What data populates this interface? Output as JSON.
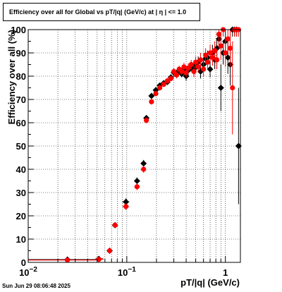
{
  "chart_data": {
    "type": "scatter",
    "title": "Efficiency over all for Global vs pT/|q| (GeV/c) at |  η  | <= 1.0",
    "xlabel": "pT/|q| (GeV/c)",
    "ylabel": "Efficiency over all (%)",
    "xscale": "log",
    "xlim": [
      0.01,
      1.42
    ],
    "ylim": [
      0,
      100
    ],
    "grid": true,
    "x_tick_labels": [
      {
        "value": 0.01,
        "base": "10",
        "exp": "−2"
      },
      {
        "value": 0.1,
        "base": "10",
        "exp": "−1"
      },
      {
        "value": 1,
        "base": "1",
        "exp": ""
      }
    ],
    "y_ticks": [
      0,
      10,
      20,
      30,
      40,
      50,
      60,
      70,
      80,
      90,
      100
    ],
    "series": [
      {
        "color": "#000000",
        "marker": "diamond",
        "points": [
          {
            "x": 0.025,
            "y": 1.2,
            "xerr": [
              0.015,
              0.025
            ]
          },
          {
            "x": 0.052,
            "y": 1.5,
            "xerr": [
              0.004,
              0.006
            ]
          },
          {
            "x": 0.067,
            "y": 5.0
          },
          {
            "x": 0.076,
            "y": 16.0
          },
          {
            "x": 0.098,
            "y": 26.0,
            "xerr": [
              0.008,
              0.008
            ],
            "yerr": 1.5
          },
          {
            "x": 0.127,
            "y": 35.0,
            "xerr": [
              0.008,
              0.009
            ],
            "yerr": 1.5
          },
          {
            "x": 0.148,
            "y": 42.5,
            "yerr": 1.5
          },
          {
            "x": 0.158,
            "y": 62.0,
            "yerr": 1.2
          },
          {
            "x": 0.178,
            "y": 71.5,
            "yerr": 1.2
          },
          {
            "x": 0.197,
            "y": 74.0,
            "yerr": 1.2
          },
          {
            "x": 0.216,
            "y": 76.0,
            "yerr": 1.2
          },
          {
            "x": 0.237,
            "y": 77.0,
            "yerr": 1.2
          },
          {
            "x": 0.258,
            "y": 77.5,
            "yerr": 1.2
          },
          {
            "x": 0.28,
            "y": 79.5,
            "yerr": 1.2
          },
          {
            "x": 0.3,
            "y": 81.5,
            "yerr": 1.5
          },
          {
            "x": 0.32,
            "y": 81.0,
            "yerr": 1.5
          },
          {
            "x": 0.34,
            "y": 82.5,
            "yerr": 1.5
          },
          {
            "x": 0.36,
            "y": 81.0,
            "yerr": 1.5
          },
          {
            "x": 0.38,
            "y": 83.0,
            "yerr": 1.8
          },
          {
            "x": 0.4,
            "y": 80.0,
            "yerr": 2
          },
          {
            "x": 0.42,
            "y": 82.5,
            "yerr": 2
          },
          {
            "x": 0.45,
            "y": 84.0,
            "yerr": 2
          },
          {
            "x": 0.48,
            "y": 83.0,
            "yerr": 2.5
          },
          {
            "x": 0.5,
            "y": 85.0,
            "yerr": 2.5
          },
          {
            "x": 0.53,
            "y": 86.0,
            "yerr": 2.5
          },
          {
            "x": 0.56,
            "y": 82.0,
            "yerr": 3
          },
          {
            "x": 0.6,
            "y": 85.0,
            "yerr": 3
          },
          {
            "x": 0.63,
            "y": 87.5,
            "yerr": 3
          },
          {
            "x": 0.66,
            "y": 88.0,
            "yerr": 3
          },
          {
            "x": 0.7,
            "y": 83.0,
            "yerr": 3.5
          },
          {
            "x": 0.74,
            "y": 90.0,
            "yerr": 3.5
          },
          {
            "x": 0.78,
            "y": 87.0,
            "yerr": 4
          },
          {
            "x": 0.82,
            "y": 92.0,
            "yerr": 4
          },
          {
            "x": 0.86,
            "y": 96.0,
            "yerr": 4
          },
          {
            "x": 0.9,
            "y": 75.0,
            "yerr": 10
          },
          {
            "x": 0.95,
            "y": 90.0,
            "yerr": 5
          },
          {
            "x": 1.0,
            "y": 95.0,
            "yerr": 5
          },
          {
            "x": 1.06,
            "y": 88.0,
            "yerr": 7
          },
          {
            "x": 1.12,
            "y": 85.0,
            "yerr": 9
          },
          {
            "x": 1.18,
            "y": 100.0,
            "yerr": 3
          },
          {
            "x": 1.24,
            "y": 100.0,
            "yerr": 3
          },
          {
            "x": 1.3,
            "y": 100.0,
            "yerr": 3
          },
          {
            "x": 1.36,
            "y": 50.0,
            "yerr": 25
          }
        ]
      },
      {
        "color": "#ff0000",
        "marker": "circle",
        "points": [
          {
            "x": 0.025,
            "y": 1.0,
            "xerr": [
              0.015,
              0.025
            ]
          },
          {
            "x": 0.052,
            "y": 1.3,
            "xerr": [
              0.004,
              0.006
            ]
          },
          {
            "x": 0.067,
            "y": 5.0
          },
          {
            "x": 0.076,
            "y": 16.0
          },
          {
            "x": 0.098,
            "y": 24.0,
            "xerr": [
              0.008,
              0.008
            ],
            "yerr": 1.5
          },
          {
            "x": 0.127,
            "y": 32.5,
            "xerr": [
              0.008,
              0.009
            ],
            "yerr": 1.5
          },
          {
            "x": 0.148,
            "y": 40.0,
            "yerr": 1.5
          },
          {
            "x": 0.158,
            "y": 61.0,
            "yerr": 1.2
          },
          {
            "x": 0.178,
            "y": 69.0,
            "yerr": 1.2
          },
          {
            "x": 0.197,
            "y": 72.5,
            "yerr": 1.2
          },
          {
            "x": 0.216,
            "y": 75.0,
            "yerr": 1.2
          },
          {
            "x": 0.237,
            "y": 76.5,
            "yerr": 1.2
          },
          {
            "x": 0.258,
            "y": 78.0,
            "yerr": 1.2
          },
          {
            "x": 0.28,
            "y": 79.0,
            "yerr": 1.2
          },
          {
            "x": 0.3,
            "y": 82.0,
            "yerr": 1.5
          },
          {
            "x": 0.32,
            "y": 80.5,
            "yerr": 1.5
          },
          {
            "x": 0.34,
            "y": 83.0,
            "yerr": 1.5
          },
          {
            "x": 0.36,
            "y": 82.0,
            "yerr": 1.5
          },
          {
            "x": 0.38,
            "y": 84.0,
            "yerr": 1.8
          },
          {
            "x": 0.4,
            "y": 81.5,
            "yerr": 2
          },
          {
            "x": 0.42,
            "y": 83.5,
            "yerr": 2
          },
          {
            "x": 0.45,
            "y": 85.0,
            "yerr": 2
          },
          {
            "x": 0.48,
            "y": 82.0,
            "yerr": 2.5
          },
          {
            "x": 0.5,
            "y": 86.0,
            "yerr": 2.5
          },
          {
            "x": 0.53,
            "y": 84.0,
            "yerr": 2.5
          },
          {
            "x": 0.56,
            "y": 87.0,
            "yerr": 3
          },
          {
            "x": 0.6,
            "y": 83.0,
            "yerr": 3
          },
          {
            "x": 0.63,
            "y": 89.0,
            "yerr": 3
          },
          {
            "x": 0.66,
            "y": 86.0,
            "yerr": 3
          },
          {
            "x": 0.7,
            "y": 90.0,
            "yerr": 3.5
          },
          {
            "x": 0.74,
            "y": 88.0,
            "yerr": 3.5
          },
          {
            "x": 0.78,
            "y": 91.0,
            "yerr": 4
          },
          {
            "x": 0.82,
            "y": 87.0,
            "yerr": 4
          },
          {
            "x": 0.86,
            "y": 98.0,
            "yerr": 4
          },
          {
            "x": 0.9,
            "y": 93.0,
            "yerr": 6
          },
          {
            "x": 0.95,
            "y": 100.0,
            "yerr": 3
          },
          {
            "x": 1.0,
            "y": 90.0,
            "yerr": 6
          },
          {
            "x": 1.06,
            "y": 96.0,
            "yerr": 6
          },
          {
            "x": 1.12,
            "y": 92.0,
            "yerr": 8
          },
          {
            "x": 1.18,
            "y": 75.0,
            "yerr": 20
          },
          {
            "x": 1.24,
            "y": 100.0,
            "yerr": 3
          },
          {
            "x": 1.3,
            "y": 100.0,
            "yerr": 3
          },
          {
            "x": 1.36,
            "y": 100.0,
            "yerr": 3
          }
        ]
      }
    ]
  },
  "footer": {
    "timestamp": "Sun Jun 29 08:06:48 2025"
  }
}
